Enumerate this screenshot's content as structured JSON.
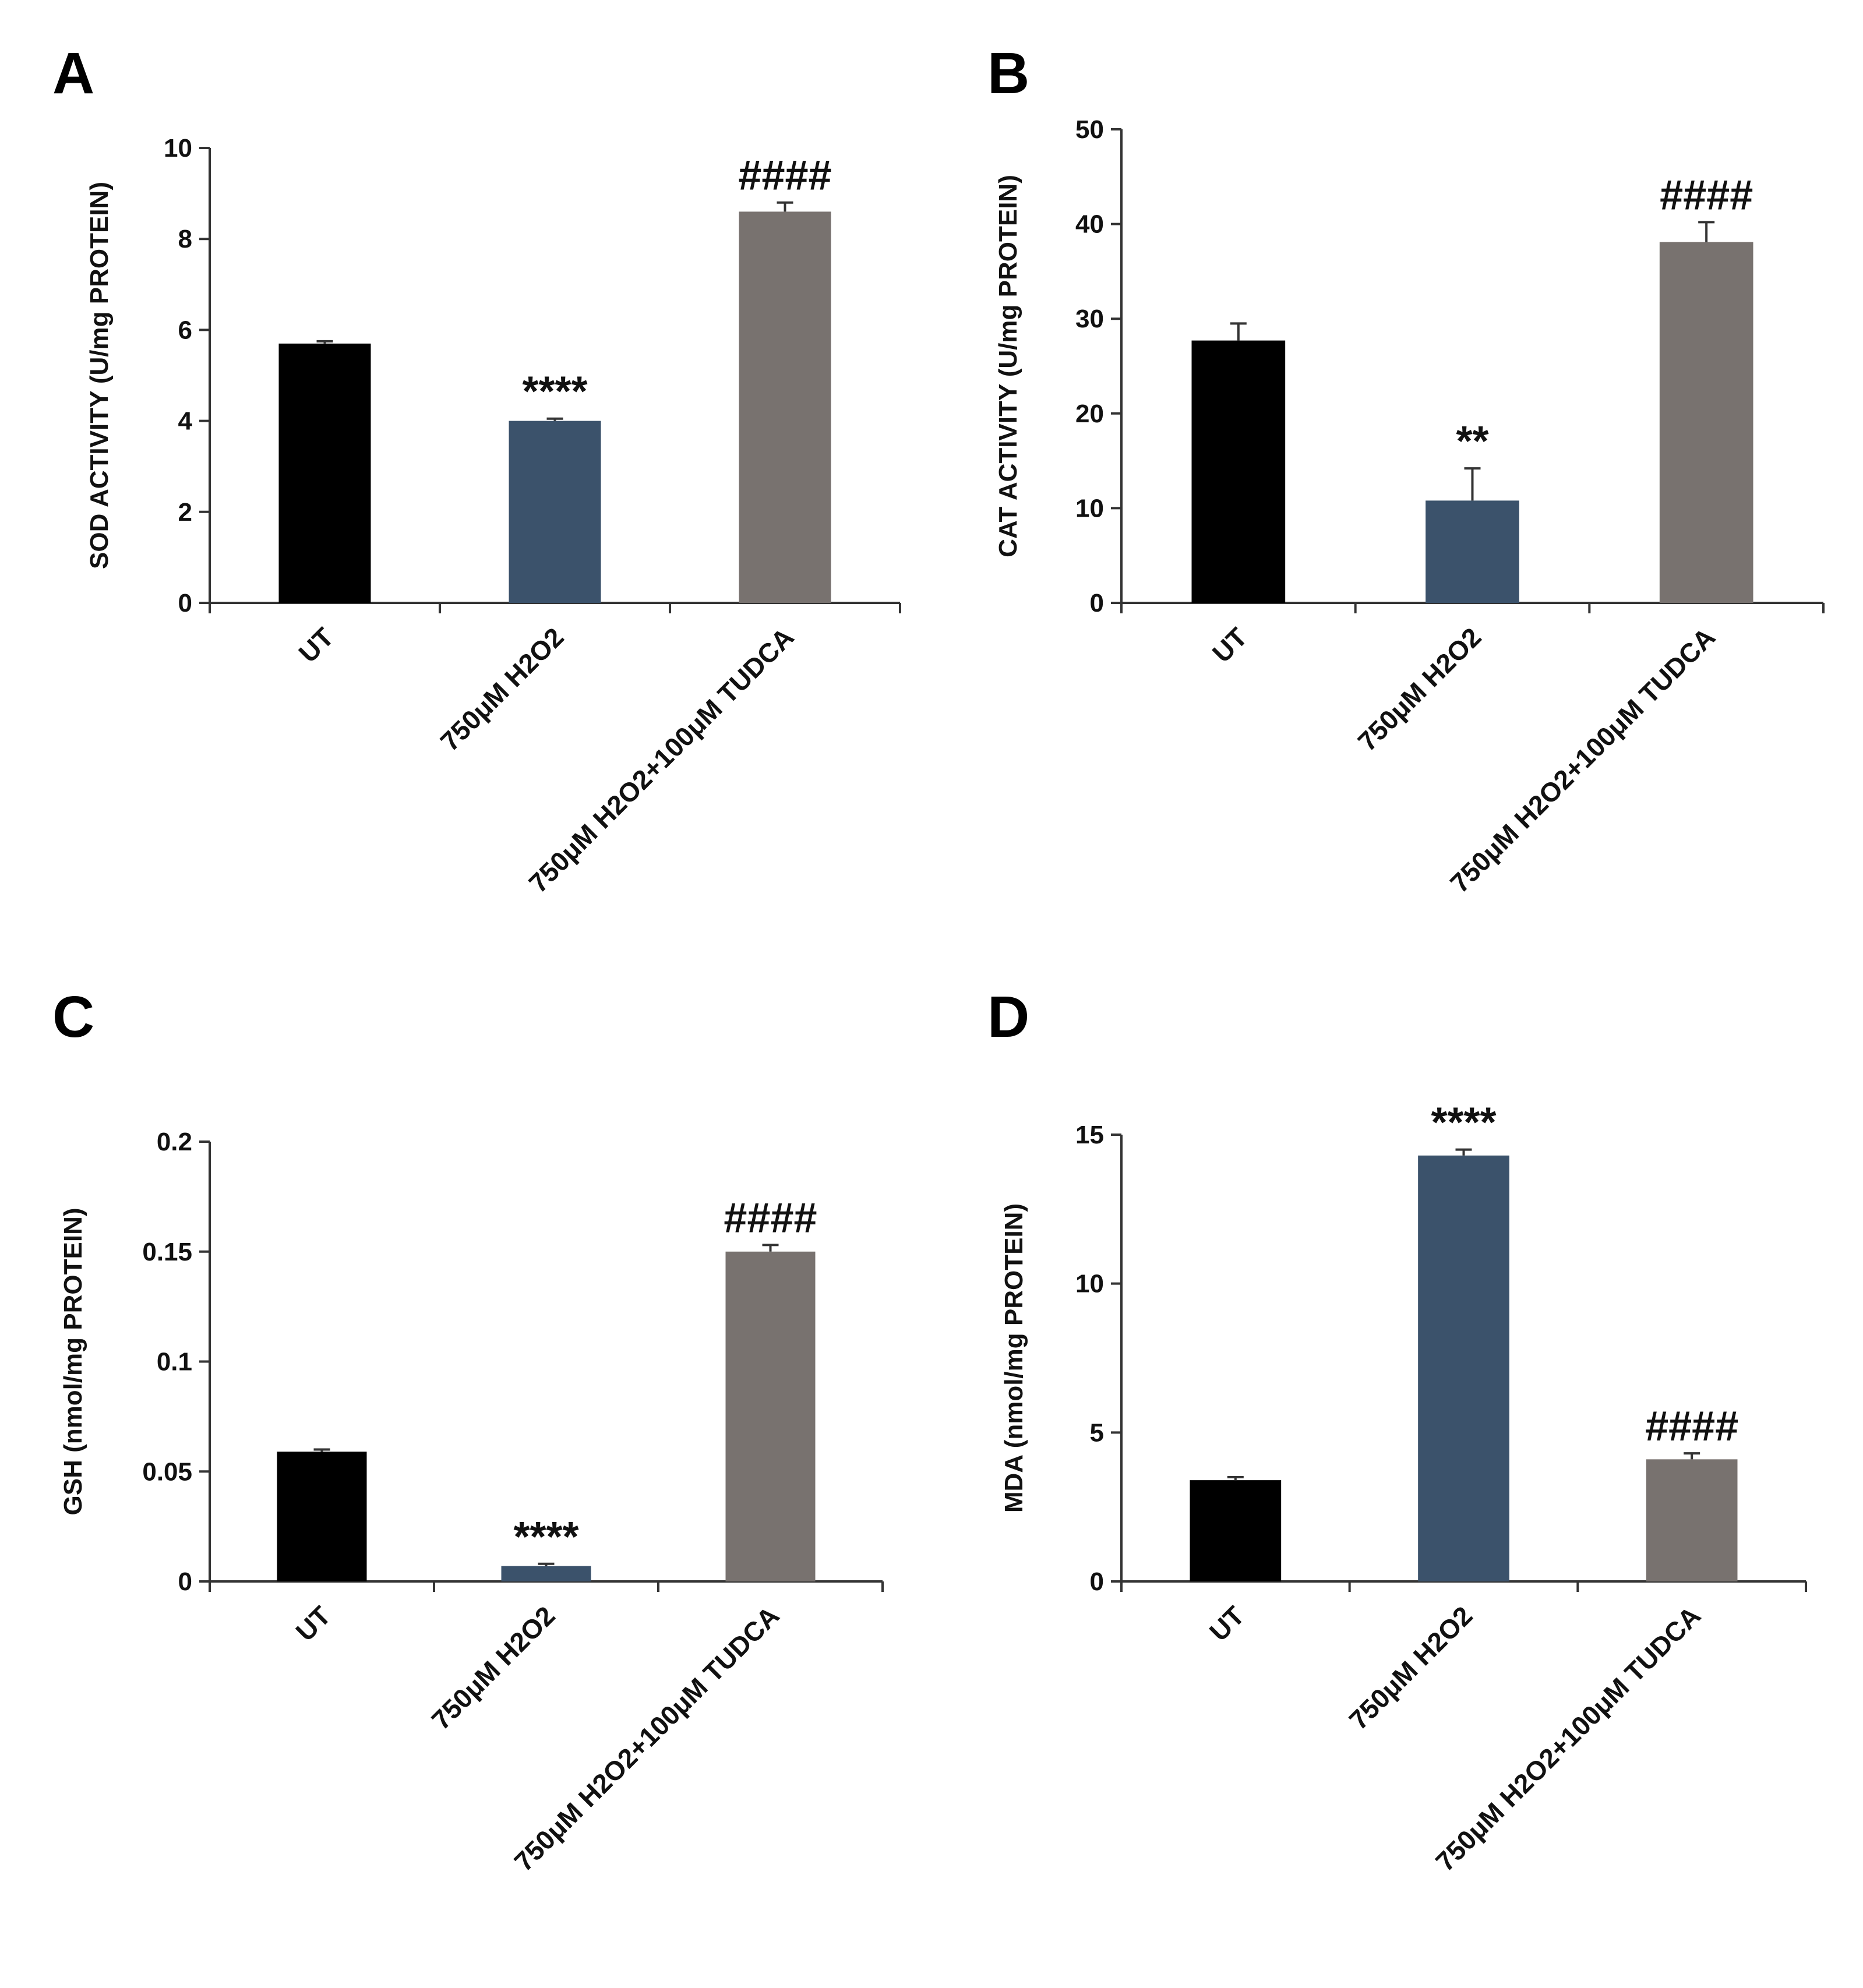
{
  "chart_data": [
    {
      "panel": "A",
      "type": "bar",
      "categories": [
        "UT",
        "750μM H2O2",
        "750μM H2O2+100μM TUDCA"
      ],
      "values": [
        5.7,
        4.0,
        8.6
      ],
      "errors": [
        0.05,
        0.05,
        0.2
      ],
      "colors": [
        "#000000",
        "#3b526b",
        "#78726f"
      ],
      "significance": [
        "",
        "****",
        "####"
      ],
      "ylabel": "SOD ACTIVITY (U/mg PROTEIN)",
      "xlabel": "",
      "ylim": [
        0,
        10
      ],
      "yticks": [
        0,
        2,
        4,
        6,
        8,
        10
      ],
      "ytick_labels": [
        "0",
        "2",
        "4",
        "6",
        "8",
        "10"
      ]
    },
    {
      "panel": "B",
      "type": "bar",
      "categories": [
        "UT",
        "750μM H2O2",
        "750μM H2O2+100μM TUDCA"
      ],
      "values": [
        27.7,
        10.8,
        38.1
      ],
      "errors": [
        1.8,
        3.4,
        2.1
      ],
      "colors": [
        "#000000",
        "#3b526b",
        "#78726f"
      ],
      "significance": [
        "",
        "**",
        "####"
      ],
      "ylabel": "CAT ACTIVITY (U/mg PROTEIN)",
      "xlabel": "",
      "ylim": [
        0,
        50
      ],
      "yticks": [
        0,
        10,
        20,
        30,
        40,
        50
      ],
      "ytick_labels": [
        "0",
        "10",
        "20",
        "30",
        "40",
        "50"
      ]
    },
    {
      "panel": "C",
      "type": "bar",
      "categories": [
        "UT",
        "750μM H2O2",
        "750μM H2O2+100μM TUDCA"
      ],
      "values": [
        0.059,
        0.007,
        0.15
      ],
      "errors": [
        0.001,
        0.001,
        0.003
      ],
      "colors": [
        "#000000",
        "#3b526b",
        "#78726f"
      ],
      "significance": [
        "",
        "****",
        "####"
      ],
      "ylabel": "GSH (nmol/mg PROTEIN)",
      "xlabel": "",
      "ylim": [
        0,
        0.2
      ],
      "yticks": [
        0,
        0.05,
        0.1,
        0.15,
        0.2
      ],
      "ytick_labels": [
        "0",
        "0.05",
        "0.1",
        "0.15",
        "0.2"
      ]
    },
    {
      "panel": "D",
      "type": "bar",
      "categories": [
        "UT",
        "750μM H2O2",
        "750μM H2O2+100μM TUDCA"
      ],
      "values": [
        3.4,
        14.3,
        4.1
      ],
      "errors": [
        0.1,
        0.2,
        0.2
      ],
      "colors": [
        "#000000",
        "#3b526b",
        "#78726f"
      ],
      "significance": [
        "",
        "****",
        "####"
      ],
      "ylabel": "MDA (nmol/mg PROTEIN)",
      "xlabel": "",
      "ylim": [
        0,
        15
      ],
      "yticks": [
        0,
        5,
        10,
        15
      ],
      "ytick_labels": [
        "0",
        "5",
        "10",
        "15"
      ]
    }
  ]
}
